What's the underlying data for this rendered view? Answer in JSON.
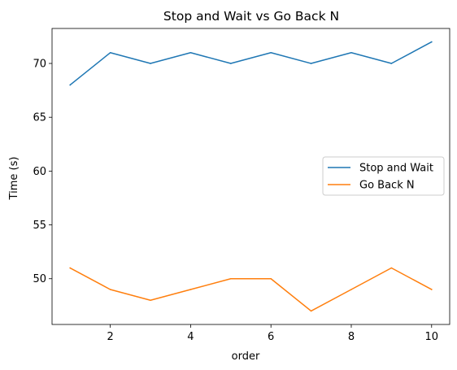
{
  "chart_data": {
    "type": "line",
    "title": "Stop and Wait vs Go Back N",
    "xlabel": "order",
    "ylabel": "Time (s)",
    "x": [
      1,
      2,
      3,
      4,
      5,
      6,
      7,
      8,
      9,
      10
    ],
    "series": [
      {
        "name": "Stop and Wait",
        "color": "#1f77b4",
        "values": [
          68,
          71,
          70,
          71,
          70,
          71,
          70,
          71,
          70,
          72
        ]
      },
      {
        "name": "Go Back N",
        "color": "#ff7f0e",
        "values": [
          51,
          49,
          48,
          49,
          50,
          50,
          47,
          49,
          51,
          49
        ]
      }
    ],
    "xlim": [
      0.55,
      10.45
    ],
    "ylim": [
      45.75,
      73.25
    ],
    "xticks": [
      2,
      4,
      6,
      8,
      10
    ],
    "yticks": [
      50,
      55,
      60,
      65,
      70
    ],
    "grid": false,
    "legend": "center-right"
  }
}
